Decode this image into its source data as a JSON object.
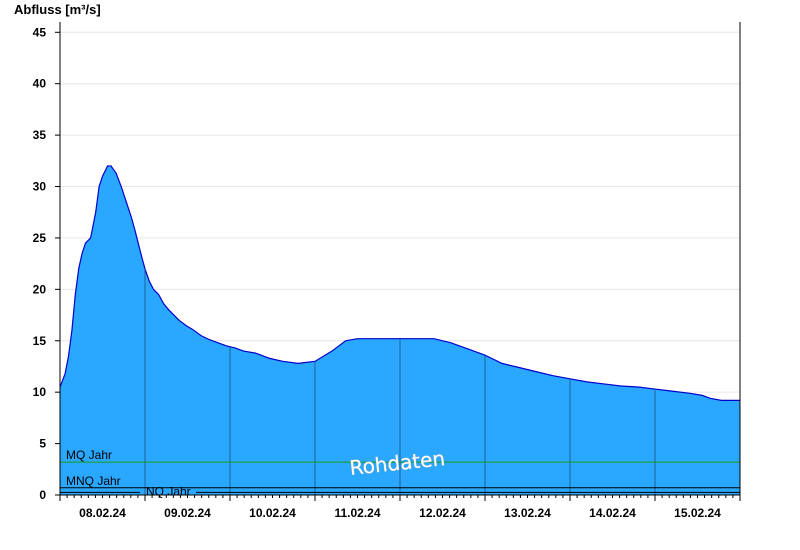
{
  "chart_data": {
    "type": "area",
    "ylabel": "Abfluss [m³/s]",
    "ylim": [
      0,
      46
    ],
    "yticks": [
      0,
      5,
      10,
      15,
      20,
      25,
      30,
      35,
      40,
      45
    ],
    "xlim": [
      0,
      8
    ],
    "x_tick_labels": [
      "08.02.24",
      "09.02.24",
      "10.02.24",
      "11.02.24",
      "12.02.24",
      "13.02.24",
      "14.02.24",
      "15.02.24"
    ],
    "grid": true,
    "area_color": "#2aa7ff",
    "line_color": "#0000cc",
    "x": [
      0.0,
      0.06,
      0.1,
      0.14,
      0.18,
      0.22,
      0.26,
      0.3,
      0.36,
      0.42,
      0.46,
      0.5,
      0.56,
      0.6,
      0.66,
      0.72,
      0.78,
      0.84,
      0.88,
      0.92,
      0.96,
      1.0,
      1.05,
      1.1,
      1.16,
      1.22,
      1.28,
      1.34,
      1.4,
      1.48,
      1.56,
      1.66,
      1.76,
      1.86,
      1.96,
      2.06,
      2.16,
      2.3,
      2.46,
      2.62,
      2.8,
      3.0,
      3.2,
      3.36,
      3.5,
      3.6,
      3.7,
      3.8,
      3.9,
      4.0,
      4.2,
      4.4,
      4.6,
      4.7,
      4.8,
      4.9,
      5.0,
      5.1,
      5.2,
      5.4,
      5.6,
      5.8,
      6.0,
      6.2,
      6.4,
      6.6,
      6.8,
      7.0,
      7.2,
      7.4,
      7.55,
      7.65,
      7.78,
      8.0
    ],
    "values": [
      10.5,
      11.8,
      13.5,
      16.0,
      19.5,
      22.0,
      23.5,
      24.5,
      25.0,
      27.5,
      30.0,
      31.0,
      32.0,
      32.0,
      31.3,
      30.0,
      28.5,
      27.0,
      25.8,
      24.5,
      23.2,
      22.0,
      20.8,
      20.0,
      19.5,
      18.6,
      18.0,
      17.5,
      17.0,
      16.5,
      16.1,
      15.5,
      15.1,
      14.8,
      14.5,
      14.3,
      14.0,
      13.8,
      13.3,
      13.0,
      12.8,
      13.0,
      14.0,
      15.0,
      15.2,
      15.2,
      15.2,
      15.2,
      15.2,
      15.2,
      15.2,
      15.2,
      14.8,
      14.5,
      14.2,
      13.9,
      13.6,
      13.2,
      12.8,
      12.4,
      12.0,
      11.6,
      11.3,
      11.0,
      10.8,
      10.6,
      10.5,
      10.3,
      10.1,
      9.9,
      9.7,
      9.4,
      9.2,
      9.2
    ],
    "reference_lines": [
      {
        "name": "MQ Jahr",
        "value": 3.2,
        "color": "#1a9e1a"
      },
      {
        "name": "MNQ Jahr",
        "value": 0.7,
        "color": "#000000"
      },
      {
        "name": "NQ Jahr",
        "value": 0.25,
        "color": "#000000"
      }
    ],
    "annotation": "Rohdaten"
  }
}
